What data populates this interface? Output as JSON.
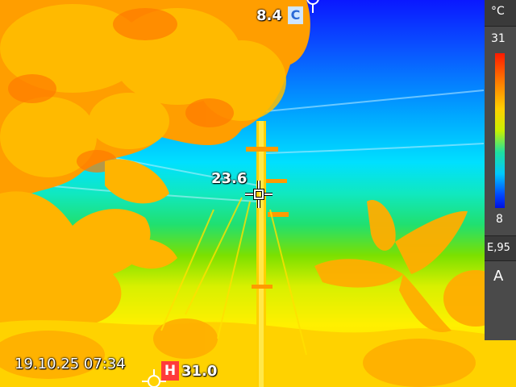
{
  "colors": {
    "sky_top": "#0a18ff",
    "sky_mid": "#00d0ff",
    "ground_green": "#7fe000",
    "ground_yellow": "#ffe000",
    "foliage": "#ffb000",
    "palette_hot": "#ff1a00",
    "palette_cold": "#0010e0",
    "hot_marker": "#ff3b3b",
    "cold_marker": "#2a69d6"
  },
  "scale": {
    "unit": "°C",
    "max": "31",
    "min": "8",
    "emissivity": "E,95",
    "mode": "A"
  },
  "spot": {
    "value": "23.6",
    "icon": "crosshair-icon"
  },
  "cold": {
    "value": "8.4",
    "marker": "C",
    "icon": "cold-spot-icon"
  },
  "hot": {
    "value": "31.0",
    "marker": "H",
    "icon": "hot-spot-icon"
  },
  "timestamp": "19.10.25 07:34"
}
